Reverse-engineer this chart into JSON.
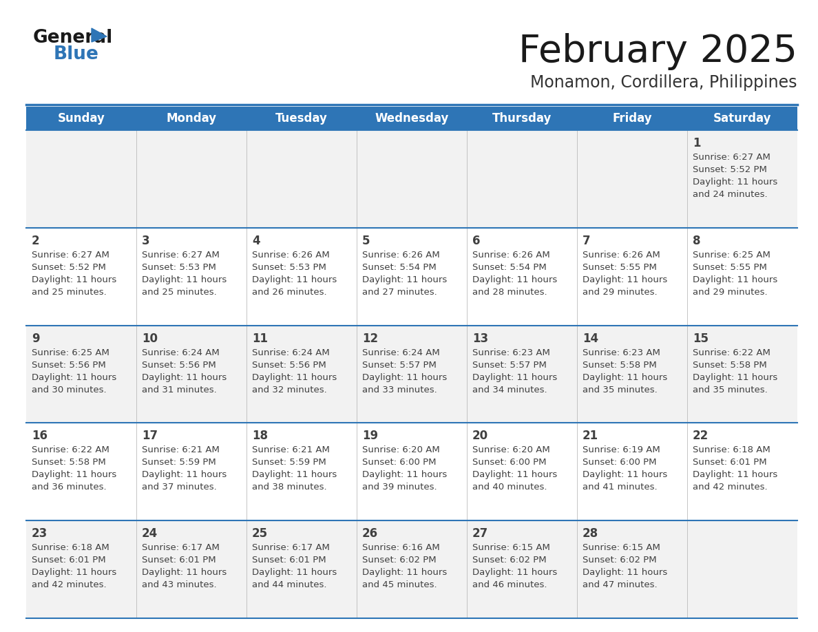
{
  "title": "February 2025",
  "subtitle": "Monamon, Cordillera, Philippines",
  "header_color": "#2e75b6",
  "header_text_color": "#ffffff",
  "cell_bg_row0": "#f2f2f2",
  "cell_bg_row1": "#ffffff",
  "cell_bg_row2": "#f2f2f2",
  "cell_bg_row3": "#ffffff",
  "cell_bg_row4": "#f2f2f2",
  "border_color": "#2e75b6",
  "text_color": "#404040",
  "days_of_week": [
    "Sunday",
    "Monday",
    "Tuesday",
    "Wednesday",
    "Thursday",
    "Friday",
    "Saturday"
  ],
  "weeks": [
    [
      {
        "day": null,
        "sunrise": null,
        "sunset": null,
        "daylight": null
      },
      {
        "day": null,
        "sunrise": null,
        "sunset": null,
        "daylight": null
      },
      {
        "day": null,
        "sunrise": null,
        "sunset": null,
        "daylight": null
      },
      {
        "day": null,
        "sunrise": null,
        "sunset": null,
        "daylight": null
      },
      {
        "day": null,
        "sunrise": null,
        "sunset": null,
        "daylight": null
      },
      {
        "day": null,
        "sunrise": null,
        "sunset": null,
        "daylight": null
      },
      {
        "day": 1,
        "sunrise": "6:27 AM",
        "sunset": "5:52 PM",
        "daylight": "11 hours and 24 minutes"
      }
    ],
    [
      {
        "day": 2,
        "sunrise": "6:27 AM",
        "sunset": "5:52 PM",
        "daylight": "11 hours and 25 minutes"
      },
      {
        "day": 3,
        "sunrise": "6:27 AM",
        "sunset": "5:53 PM",
        "daylight": "11 hours and 25 minutes"
      },
      {
        "day": 4,
        "sunrise": "6:26 AM",
        "sunset": "5:53 PM",
        "daylight": "11 hours and 26 minutes"
      },
      {
        "day": 5,
        "sunrise": "6:26 AM",
        "sunset": "5:54 PM",
        "daylight": "11 hours and 27 minutes"
      },
      {
        "day": 6,
        "sunrise": "6:26 AM",
        "sunset": "5:54 PM",
        "daylight": "11 hours and 28 minutes"
      },
      {
        "day": 7,
        "sunrise": "6:26 AM",
        "sunset": "5:55 PM",
        "daylight": "11 hours and 29 minutes"
      },
      {
        "day": 8,
        "sunrise": "6:25 AM",
        "sunset": "5:55 PM",
        "daylight": "11 hours and 29 minutes"
      }
    ],
    [
      {
        "day": 9,
        "sunrise": "6:25 AM",
        "sunset": "5:56 PM",
        "daylight": "11 hours and 30 minutes"
      },
      {
        "day": 10,
        "sunrise": "6:24 AM",
        "sunset": "5:56 PM",
        "daylight": "11 hours and 31 minutes"
      },
      {
        "day": 11,
        "sunrise": "6:24 AM",
        "sunset": "5:56 PM",
        "daylight": "11 hours and 32 minutes"
      },
      {
        "day": 12,
        "sunrise": "6:24 AM",
        "sunset": "5:57 PM",
        "daylight": "11 hours and 33 minutes"
      },
      {
        "day": 13,
        "sunrise": "6:23 AM",
        "sunset": "5:57 PM",
        "daylight": "11 hours and 34 minutes"
      },
      {
        "day": 14,
        "sunrise": "6:23 AM",
        "sunset": "5:58 PM",
        "daylight": "11 hours and 35 minutes"
      },
      {
        "day": 15,
        "sunrise": "6:22 AM",
        "sunset": "5:58 PM",
        "daylight": "11 hours and 35 minutes"
      }
    ],
    [
      {
        "day": 16,
        "sunrise": "6:22 AM",
        "sunset": "5:58 PM",
        "daylight": "11 hours and 36 minutes"
      },
      {
        "day": 17,
        "sunrise": "6:21 AM",
        "sunset": "5:59 PM",
        "daylight": "11 hours and 37 minutes"
      },
      {
        "day": 18,
        "sunrise": "6:21 AM",
        "sunset": "5:59 PM",
        "daylight": "11 hours and 38 minutes"
      },
      {
        "day": 19,
        "sunrise": "6:20 AM",
        "sunset": "6:00 PM",
        "daylight": "11 hours and 39 minutes"
      },
      {
        "day": 20,
        "sunrise": "6:20 AM",
        "sunset": "6:00 PM",
        "daylight": "11 hours and 40 minutes"
      },
      {
        "day": 21,
        "sunrise": "6:19 AM",
        "sunset": "6:00 PM",
        "daylight": "11 hours and 41 minutes"
      },
      {
        "day": 22,
        "sunrise": "6:18 AM",
        "sunset": "6:01 PM",
        "daylight": "11 hours and 42 minutes"
      }
    ],
    [
      {
        "day": 23,
        "sunrise": "6:18 AM",
        "sunset": "6:01 PM",
        "daylight": "11 hours and 42 minutes"
      },
      {
        "day": 24,
        "sunrise": "6:17 AM",
        "sunset": "6:01 PM",
        "daylight": "11 hours and 43 minutes"
      },
      {
        "day": 25,
        "sunrise": "6:17 AM",
        "sunset": "6:01 PM",
        "daylight": "11 hours and 44 minutes"
      },
      {
        "day": 26,
        "sunrise": "6:16 AM",
        "sunset": "6:02 PM",
        "daylight": "11 hours and 45 minutes"
      },
      {
        "day": 27,
        "sunrise": "6:15 AM",
        "sunset": "6:02 PM",
        "daylight": "11 hours and 46 minutes"
      },
      {
        "day": 28,
        "sunrise": "6:15 AM",
        "sunset": "6:02 PM",
        "daylight": "11 hours and 47 minutes"
      },
      {
        "day": null,
        "sunrise": null,
        "sunset": null,
        "daylight": null
      }
    ]
  ]
}
